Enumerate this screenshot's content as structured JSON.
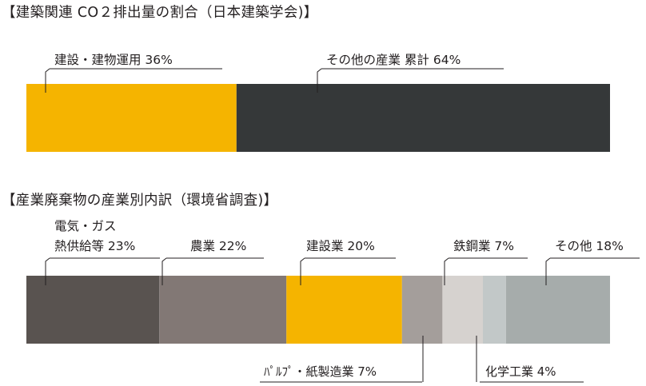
{
  "chart_data": [
    {
      "type": "bar",
      "stacked": "horizontal-100%",
      "title": "【建築関連 CO２排出量の割合（日本建築学会)】",
      "series": [
        {
          "name": "建設・建物運用",
          "value": 36,
          "label": "建設・建物運用 36%",
          "color": "#f5b400"
        },
        {
          "name": "その他の産業 累計",
          "value": 64,
          "label": "その他の産業 累計 64%",
          "color": "#353839"
        }
      ]
    },
    {
      "type": "bar",
      "stacked": "horizontal-100%",
      "title": "【産業廃棄物の産業別内訳（環境省調査)】",
      "series": [
        {
          "name": "電気・ガス熱供給等",
          "value": 23,
          "label": [
            "電気・ガス",
            "熱供給等 23%"
          ],
          "color": "#595350"
        },
        {
          "name": "農業",
          "value": 22,
          "label": [
            "農業 22%"
          ],
          "color": "#827875"
        },
        {
          "name": "建設業",
          "value": 20,
          "label": [
            "建設業 20%"
          ],
          "color": "#f5b400"
        },
        {
          "name": "パルプ・紙製造業",
          "value": 7,
          "label": [
            "ﾊﾟﾙﾌﾟ・紙製造業 7%"
          ],
          "color": "#a49e9b"
        },
        {
          "name": "鉄鋼業",
          "value": 7,
          "label": [
            "鉄鋼業 7%"
          ],
          "color": "#d6d2cf"
        },
        {
          "name": "化学工業",
          "value": 4,
          "label": [
            "化学工業 4%"
          ],
          "color": "#c2c8c8"
        },
        {
          "name": "その他",
          "value": 18,
          "label": [
            "その他 18%"
          ],
          "color": "#a6acab"
        }
      ]
    }
  ]
}
